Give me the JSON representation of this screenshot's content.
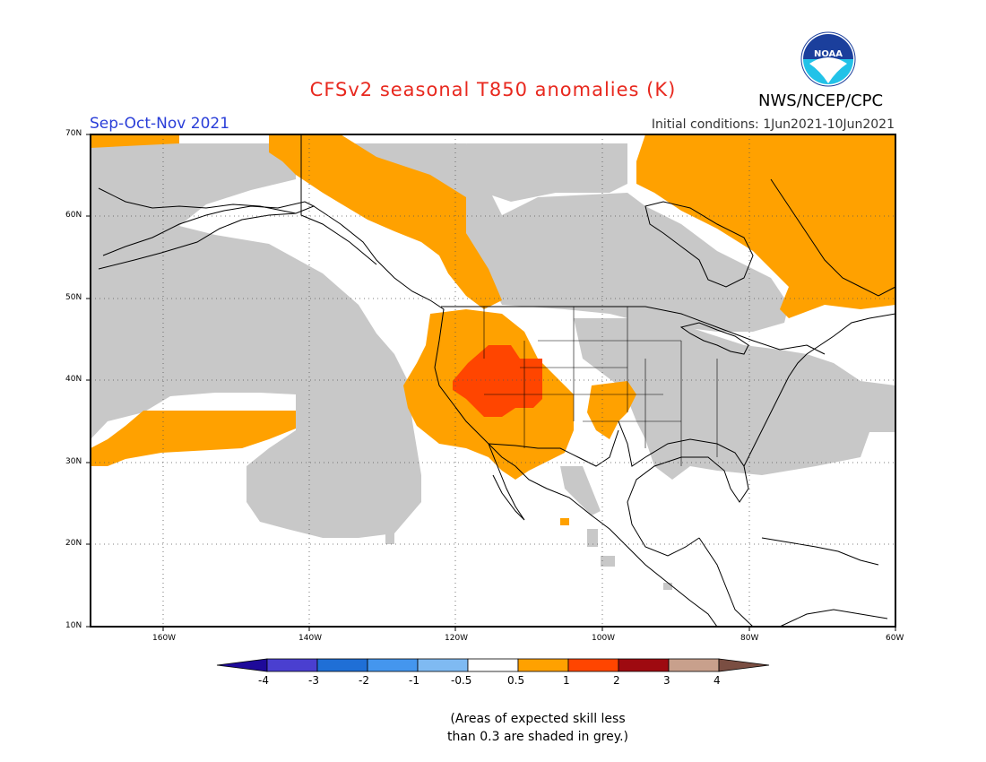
{
  "header": {
    "title": "CFSv2 seasonal T850 anomalies (K)",
    "agency": "NWS/NCEP/CPC",
    "logo_text": "NOAA",
    "season": "Sep-Oct-Nov 2021",
    "initial_conditions": "Initial conditions: 1Jun2021-10Jun2021"
  },
  "map": {
    "lat_labels": [
      "70N",
      "60N",
      "50N",
      "40N",
      "30N",
      "20N",
      "10N"
    ],
    "lon_labels": [
      "160W",
      "140W",
      "120W",
      "100W",
      "80W",
      "60W"
    ],
    "extent": {
      "lon_west": "170W",
      "lon_east": "60W",
      "lat_south": "10N",
      "lat_north": "70N"
    },
    "colors": {
      "skill_mask": "#c8c8c8",
      "ocean_land_blank": "#ffffff",
      "coast": "#000000"
    }
  },
  "colorbar": {
    "labels": [
      "-4",
      "-3",
      "-2",
      "-1",
      "-0.5",
      "0.5",
      "1",
      "2",
      "3",
      "4"
    ],
    "colors": [
      "#1e0a9a",
      "#4a3fd0",
      "#1f6fd6",
      "#4496ee",
      "#7fbaf2",
      "#ffffff",
      "#ffa100",
      "#ff4500",
      "#9e0a10",
      "#c8a08c",
      "#7a4e42"
    ]
  },
  "note": {
    "line1": "(Areas of expected skill less",
    "line2": "than 0.3 are shaded in grey.)"
  }
}
